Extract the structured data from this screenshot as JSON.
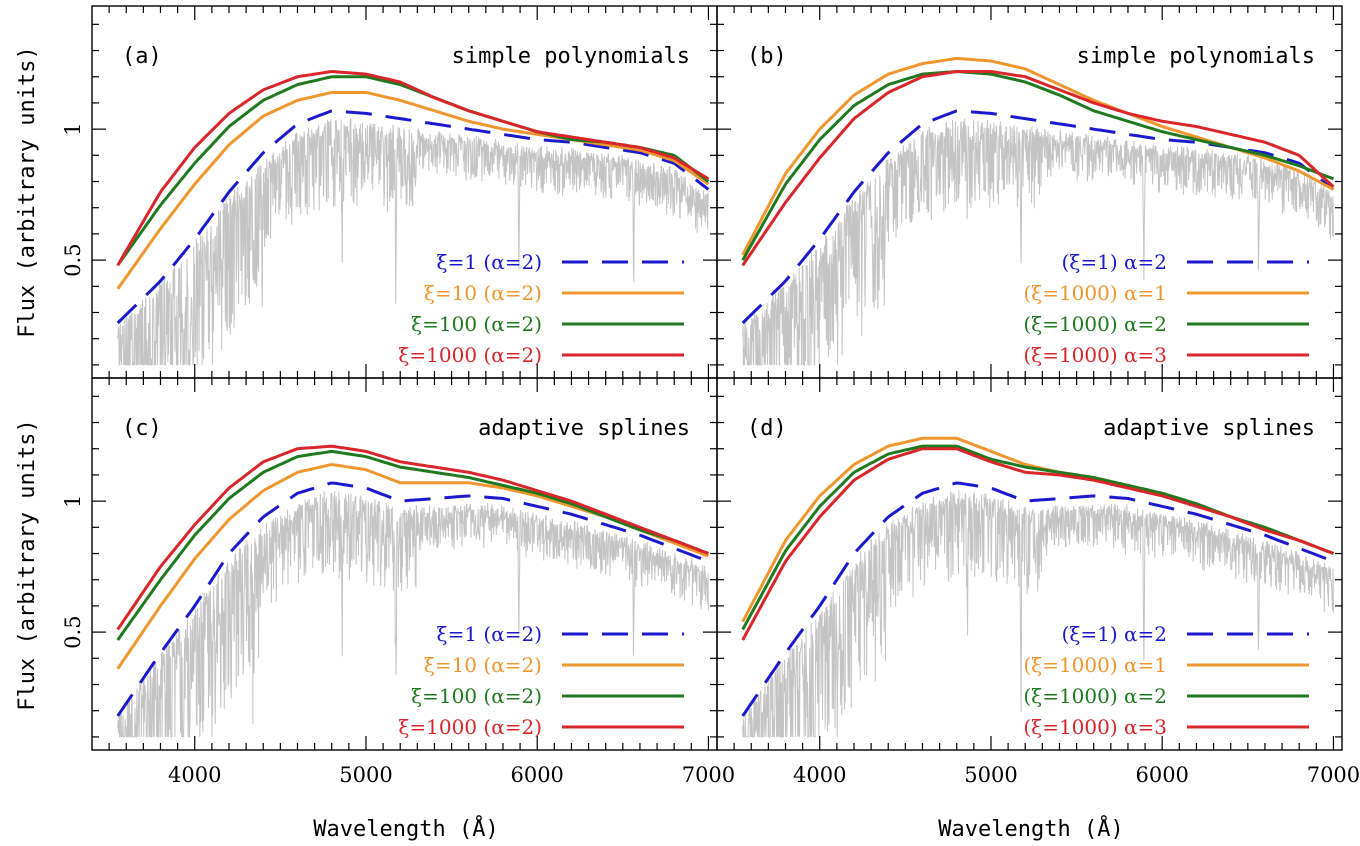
{
  "figure": {
    "xlabel": "Wavelength (Å)",
    "ylabel": "Flux (arbitrary units)"
  },
  "colors": {
    "blue": "#1a1acc",
    "orange": "#f0962e",
    "green": "#1f7a1f",
    "red": "#d8262a",
    "spectrum": "#c4c4c4"
  },
  "chart_data": [
    {
      "type": "line",
      "panel": "(a)",
      "method": "simple polynomials",
      "xlim": [
        3400,
        7050
      ],
      "ylim": [
        0.05,
        1.47
      ],
      "xticks": [
        "4000",
        "5000",
        "6000",
        "7000"
      ],
      "xtick_values": [
        4000,
        5000,
        6000,
        7000
      ],
      "yticks": [
        "0.5",
        "1"
      ],
      "ytick_values": [
        0.5,
        1.0
      ],
      "series": [
        {
          "name": "ξ=1 (α=2)",
          "color": "blue",
          "dash": true,
          "x": [
            3550,
            3800,
            4000,
            4200,
            4400,
            4600,
            4800,
            5000,
            5200,
            5400,
            5600,
            5800,
            6000,
            6200,
            6400,
            6600,
            6800,
            7000
          ],
          "y": [
            0.26,
            0.42,
            0.58,
            0.76,
            0.91,
            1.02,
            1.07,
            1.06,
            1.04,
            1.02,
            1.0,
            0.98,
            0.96,
            0.95,
            0.93,
            0.91,
            0.87,
            0.77
          ]
        },
        {
          "name": "ξ=10 (α=2)",
          "color": "orange",
          "x": [
            3550,
            3800,
            4000,
            4200,
            4400,
            4600,
            4800,
            5000,
            5200,
            5400,
            5600,
            5800,
            6000,
            6200,
            6400,
            6600,
            6800,
            7000
          ],
          "y": [
            0.39,
            0.62,
            0.79,
            0.94,
            1.05,
            1.11,
            1.14,
            1.14,
            1.11,
            1.07,
            1.03,
            1.0,
            0.98,
            0.96,
            0.94,
            0.92,
            0.88,
            0.79
          ]
        },
        {
          "name": "ξ=100 (α=2)",
          "color": "green",
          "x": [
            3550,
            3800,
            4000,
            4200,
            4400,
            4600,
            4800,
            5000,
            5200,
            5400,
            5600,
            5800,
            6000,
            6200,
            6400,
            6600,
            6800,
            7000
          ],
          "y": [
            0.48,
            0.71,
            0.87,
            1.01,
            1.11,
            1.17,
            1.2,
            1.2,
            1.17,
            1.12,
            1.07,
            1.03,
            0.99,
            0.96,
            0.95,
            0.93,
            0.9,
            0.8
          ]
        },
        {
          "name": "ξ=1000 (α=2)",
          "color": "red",
          "x": [
            3550,
            3800,
            4000,
            4200,
            4400,
            4600,
            4800,
            5000,
            5200,
            5400,
            5600,
            5800,
            6000,
            6200,
            6400,
            6600,
            6800,
            7000
          ],
          "y": [
            0.48,
            0.76,
            0.93,
            1.06,
            1.15,
            1.2,
            1.22,
            1.21,
            1.18,
            1.12,
            1.07,
            1.03,
            0.99,
            0.97,
            0.95,
            0.93,
            0.89,
            0.81
          ]
        }
      ]
    },
    {
      "type": "line",
      "panel": "(b)",
      "method": "simple polynomials",
      "xlim": [
        3400,
        7050
      ],
      "ylim": [
        0.05,
        1.47
      ],
      "xticks": [
        "4000",
        "5000",
        "6000",
        "7000"
      ],
      "xtick_values": [
        4000,
        5000,
        6000,
        7000
      ],
      "yticks": [
        "0.5",
        "1"
      ],
      "ytick_values": [
        0.5,
        1.0
      ],
      "series": [
        {
          "name": "(ξ=1) α=2",
          "color": "blue",
          "dash": true,
          "x": [
            3550,
            3800,
            4000,
            4200,
            4400,
            4600,
            4800,
            5000,
            5200,
            5400,
            5600,
            5800,
            6000,
            6200,
            6400,
            6600,
            6800,
            7000
          ],
          "y": [
            0.26,
            0.42,
            0.58,
            0.76,
            0.91,
            1.02,
            1.07,
            1.06,
            1.04,
            1.02,
            1.0,
            0.98,
            0.96,
            0.95,
            0.93,
            0.91,
            0.87,
            0.77
          ]
        },
        {
          "name": "(ξ=1000) α=1",
          "color": "orange",
          "x": [
            3550,
            3800,
            4000,
            4200,
            4400,
            4600,
            4800,
            5000,
            5200,
            5400,
            5600,
            5800,
            6000,
            6200,
            6400,
            6600,
            6800,
            7000
          ],
          "y": [
            0.52,
            0.83,
            1.0,
            1.13,
            1.21,
            1.25,
            1.27,
            1.26,
            1.23,
            1.17,
            1.11,
            1.06,
            1.01,
            0.97,
            0.93,
            0.89,
            0.84,
            0.77
          ]
        },
        {
          "name": "(ξ=1000) α=2",
          "color": "green",
          "x": [
            3550,
            3800,
            4000,
            4200,
            4400,
            4600,
            4800,
            5000,
            5200,
            5400,
            5600,
            5800,
            6000,
            6200,
            6400,
            6600,
            6800,
            7000
          ],
          "y": [
            0.5,
            0.79,
            0.96,
            1.09,
            1.17,
            1.21,
            1.22,
            1.21,
            1.18,
            1.13,
            1.07,
            1.03,
            0.99,
            0.96,
            0.93,
            0.9,
            0.86,
            0.81
          ]
        },
        {
          "name": "(ξ=1000) α=3",
          "color": "red",
          "x": [
            3550,
            3800,
            4000,
            4200,
            4400,
            4600,
            4800,
            5000,
            5200,
            5400,
            5600,
            5800,
            6000,
            6200,
            6400,
            6600,
            6800,
            7000
          ],
          "y": [
            0.48,
            0.72,
            0.89,
            1.04,
            1.14,
            1.2,
            1.22,
            1.22,
            1.2,
            1.15,
            1.1,
            1.06,
            1.03,
            1.01,
            0.98,
            0.95,
            0.9,
            0.78
          ]
        }
      ]
    },
    {
      "type": "line",
      "panel": "(c)",
      "method": "adaptive splines",
      "xlim": [
        3400,
        7050
      ],
      "ylim": [
        0.05,
        1.47
      ],
      "xticks": [
        "4000",
        "5000",
        "6000",
        "7000"
      ],
      "xtick_values": [
        4000,
        5000,
        6000,
        7000
      ],
      "yticks": [
        "0.5",
        "1"
      ],
      "ytick_values": [
        0.5,
        1.0
      ],
      "series": [
        {
          "name": "ξ=1 (α=2)",
          "color": "blue",
          "dash": true,
          "x": [
            3550,
            3800,
            4000,
            4200,
            4400,
            4600,
            4800,
            5000,
            5200,
            5400,
            5600,
            5800,
            6000,
            6200,
            6400,
            6600,
            6800,
            7000
          ],
          "y": [
            0.18,
            0.42,
            0.6,
            0.8,
            0.94,
            1.03,
            1.07,
            1.05,
            1.0,
            1.01,
            1.02,
            1.01,
            0.98,
            0.95,
            0.91,
            0.87,
            0.82,
            0.77
          ]
        },
        {
          "name": "ξ=10 (α=2)",
          "color": "orange",
          "x": [
            3550,
            3800,
            4000,
            4200,
            4400,
            4600,
            4800,
            5000,
            5200,
            5400,
            5600,
            5800,
            6000,
            6200,
            6400,
            6600,
            6800,
            7000
          ],
          "y": [
            0.36,
            0.6,
            0.78,
            0.93,
            1.04,
            1.11,
            1.14,
            1.12,
            1.07,
            1.07,
            1.07,
            1.05,
            1.02,
            0.98,
            0.94,
            0.89,
            0.84,
            0.79
          ]
        },
        {
          "name": "ξ=100 (α=2)",
          "color": "green",
          "x": [
            3550,
            3800,
            4000,
            4200,
            4400,
            4600,
            4800,
            5000,
            5200,
            5400,
            5600,
            5800,
            6000,
            6200,
            6400,
            6600,
            6800,
            7000
          ],
          "y": [
            0.47,
            0.7,
            0.87,
            1.01,
            1.11,
            1.17,
            1.19,
            1.17,
            1.13,
            1.11,
            1.09,
            1.06,
            1.03,
            0.99,
            0.94,
            0.89,
            0.85,
            0.8
          ]
        },
        {
          "name": "ξ=1000 (α=2)",
          "color": "red",
          "x": [
            3550,
            3800,
            4000,
            4200,
            4400,
            4600,
            4800,
            5000,
            5200,
            5400,
            5600,
            5800,
            6000,
            6200,
            6400,
            6600,
            6800,
            7000
          ],
          "y": [
            0.51,
            0.75,
            0.91,
            1.05,
            1.15,
            1.2,
            1.21,
            1.19,
            1.15,
            1.13,
            1.11,
            1.08,
            1.04,
            1.0,
            0.95,
            0.9,
            0.85,
            0.8
          ]
        }
      ]
    },
    {
      "type": "line",
      "panel": "(d)",
      "method": "adaptive splines",
      "xlim": [
        3400,
        7050
      ],
      "ylim": [
        0.05,
        1.47
      ],
      "xticks": [
        "4000",
        "5000",
        "6000",
        "7000"
      ],
      "xtick_values": [
        4000,
        5000,
        6000,
        7000
      ],
      "yticks": [
        "0.5",
        "1"
      ],
      "ytick_values": [
        0.5,
        1.0
      ],
      "series": [
        {
          "name": "(ξ=1) α=2",
          "color": "blue",
          "dash": true,
          "x": [
            3550,
            3800,
            4000,
            4200,
            4400,
            4600,
            4800,
            5000,
            5200,
            5400,
            5600,
            5800,
            6000,
            6200,
            6400,
            6600,
            6800,
            7000
          ],
          "y": [
            0.18,
            0.42,
            0.6,
            0.8,
            0.94,
            1.03,
            1.07,
            1.05,
            1.0,
            1.01,
            1.02,
            1.01,
            0.98,
            0.95,
            0.91,
            0.87,
            0.82,
            0.77
          ]
        },
        {
          "name": "(ξ=1000) α=1",
          "color": "orange",
          "x": [
            3550,
            3800,
            4000,
            4200,
            4400,
            4600,
            4800,
            5000,
            5200,
            5400,
            5600,
            5800,
            6000,
            6200,
            6400,
            6600,
            6800,
            7000
          ],
          "y": [
            0.54,
            0.85,
            1.02,
            1.14,
            1.21,
            1.24,
            1.24,
            1.19,
            1.14,
            1.11,
            1.09,
            1.06,
            1.03,
            0.99,
            0.94,
            0.89,
            0.85,
            0.8
          ]
        },
        {
          "name": "(ξ=1000) α=2",
          "color": "green",
          "x": [
            3550,
            3800,
            4000,
            4200,
            4400,
            4600,
            4800,
            5000,
            5200,
            5400,
            5600,
            5800,
            6000,
            6200,
            6400,
            6600,
            6800,
            7000
          ],
          "y": [
            0.51,
            0.81,
            0.98,
            1.11,
            1.18,
            1.21,
            1.21,
            1.16,
            1.13,
            1.11,
            1.09,
            1.06,
            1.03,
            0.99,
            0.94,
            0.9,
            0.85,
            0.8
          ]
        },
        {
          "name": "(ξ=1000) α=3",
          "color": "red",
          "x": [
            3550,
            3800,
            4000,
            4200,
            4400,
            4600,
            4800,
            5000,
            5200,
            5400,
            5600,
            5800,
            6000,
            6200,
            6400,
            6600,
            6800,
            7000
          ],
          "y": [
            0.47,
            0.77,
            0.94,
            1.08,
            1.16,
            1.2,
            1.2,
            1.15,
            1.11,
            1.1,
            1.08,
            1.05,
            1.02,
            0.98,
            0.94,
            0.89,
            0.85,
            0.8
          ]
        }
      ]
    }
  ]
}
